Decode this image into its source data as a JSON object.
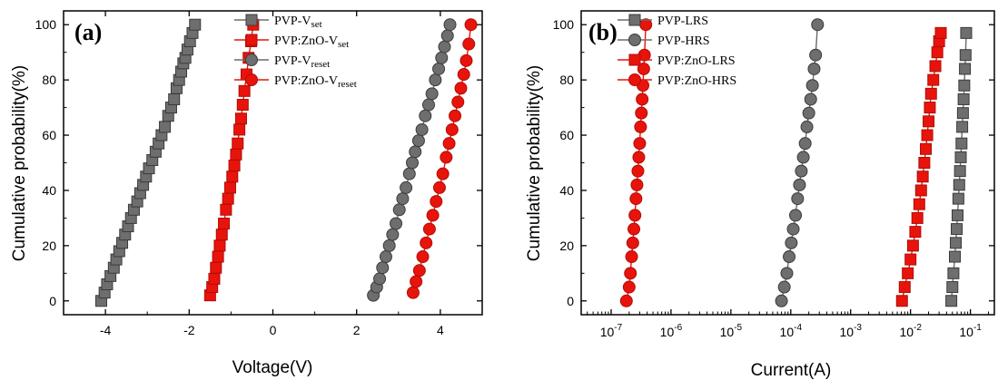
{
  "colors": {
    "gray": "#6b6b6b",
    "gray_fill": "#6e6e6e",
    "red": "#e8140c",
    "axis": "#000000"
  },
  "chart_data": [
    {
      "type": "line",
      "panel_label": "(a)",
      "xlabel": "Voltage(V)",
      "ylabel": "Cumulative probability(%)",
      "xlim": [
        -5,
        5
      ],
      "ylim": [
        -5,
        105
      ],
      "xscale": "linear",
      "x_ticks": [
        -4,
        -2,
        0,
        2,
        4
      ],
      "x_tick_labels": [
        "-4",
        "-2",
        "0",
        "2",
        "4"
      ],
      "y_ticks": [
        0,
        20,
        40,
        60,
        80,
        100
      ],
      "y_tick_labels": [
        "0",
        "20",
        "40",
        "60",
        "80",
        "100"
      ],
      "legend_position": "top-right",
      "series": [
        {
          "name": "PVP-Vset",
          "label_main": "PVP-V",
          "label_sub": "set",
          "marker": "square",
          "color": "gray",
          "x": [
            -4.1,
            -4.02,
            -3.96,
            -3.88,
            -3.8,
            -3.74,
            -3.67,
            -3.6,
            -3.53,
            -3.46,
            -3.39,
            -3.32,
            -3.24,
            -3.17,
            -3.1,
            -3.03,
            -2.96,
            -2.88,
            -2.8,
            -2.73,
            -2.66,
            -2.58,
            -2.5,
            -2.43,
            -2.36,
            -2.3,
            -2.24,
            -2.19,
            -2.14,
            -2.09,
            -2.04,
            -1.98,
            -1.92,
            -1.86
          ],
          "y": [
            0,
            3,
            6,
            9,
            12,
            15,
            18,
            21,
            24,
            27,
            30,
            33,
            36,
            39,
            42,
            45,
            48,
            51,
            54,
            57,
            60,
            63,
            67,
            70,
            73,
            77,
            80,
            83,
            86,
            88,
            91,
            94,
            97,
            100
          ]
        },
        {
          "name": "PVP:ZnO-Vset",
          "label_main": "PVP:ZnO-V",
          "label_sub": "set",
          "marker": "square",
          "color": "red",
          "x": [
            -1.5,
            -1.45,
            -1.4,
            -1.36,
            -1.31,
            -1.27,
            -1.22,
            -1.17,
            -1.12,
            -1.07,
            -1.02,
            -0.97,
            -0.92,
            -0.88,
            -0.84,
            -0.8,
            -0.76,
            -0.72,
            -0.68,
            -0.63,
            -0.58,
            -0.52,
            -0.47
          ],
          "y": [
            2,
            5,
            8,
            12,
            16,
            20,
            24,
            28,
            33,
            37,
            41,
            45,
            49,
            53,
            57,
            62,
            66,
            71,
            76,
            82,
            88,
            94,
            100
          ]
        },
        {
          "name": "PVP-Vreset",
          "label_main": "PVP-V",
          "label_sub": "reset",
          "marker": "circle",
          "color": "gray",
          "x": [
            2.4,
            2.48,
            2.55,
            2.62,
            2.7,
            2.78,
            2.86,
            2.94,
            3.02,
            3.1,
            3.18,
            3.26,
            3.33,
            3.4,
            3.48,
            3.56,
            3.64,
            3.72,
            3.8,
            3.88,
            3.96,
            4.03,
            4.1,
            4.17,
            4.23
          ],
          "y": [
            2,
            5,
            8,
            12,
            16,
            20,
            24,
            28,
            33,
            37,
            41,
            46,
            50,
            54,
            58,
            62,
            67,
            71,
            75,
            80,
            84,
            88,
            92,
            96,
            100
          ]
        },
        {
          "name": "PVP:ZnO-Vreset",
          "label_main": "PVP:ZnO-V",
          "label_sub": "reset",
          "marker": "circle",
          "color": "red",
          "x": [
            3.35,
            3.42,
            3.5,
            3.58,
            3.66,
            3.74,
            3.82,
            3.9,
            3.98,
            4.06,
            4.14,
            4.21,
            4.28,
            4.35,
            4.42,
            4.49,
            4.56,
            4.62,
            4.68,
            4.73
          ],
          "y": [
            3,
            7,
            11,
            16,
            21,
            26,
            31,
            36,
            41,
            46,
            52,
            57,
            62,
            67,
            72,
            77,
            82,
            87,
            93,
            100
          ]
        }
      ]
    },
    {
      "type": "line",
      "panel_label": "(b)",
      "xlabel": "Current(A)",
      "ylabel": "Cumulative probability(%)",
      "xlim_log10": [
        -7.5,
        -0.6
      ],
      "ylim": [
        -5,
        105
      ],
      "xscale": "log",
      "x_tick_exponents": [
        -7,
        -6,
        -5,
        -4,
        -3,
        -2,
        -1
      ],
      "x_tick_base": "10",
      "y_ticks": [
        0,
        20,
        40,
        60,
        80,
        100
      ],
      "y_tick_labels": [
        "0",
        "20",
        "40",
        "60",
        "80",
        "100"
      ],
      "legend_position": "top-left",
      "series": [
        {
          "name": "PVP-LRS",
          "marker": "square",
          "color": "gray",
          "x": [
            0.048,
            0.05,
            0.052,
            0.055,
            0.057,
            0.059,
            0.061,
            0.063,
            0.065,
            0.067,
            0.069,
            0.071,
            0.073,
            0.075,
            0.077,
            0.079,
            0.081,
            0.083,
            0.085
          ],
          "y": [
            0,
            5,
            10,
            16,
            21,
            26,
            31,
            37,
            42,
            47,
            52,
            57,
            63,
            68,
            73,
            78,
            84,
            89,
            97
          ]
        },
        {
          "name": "PVP-HRS",
          "marker": "circle",
          "color": "gray",
          "x": [
            7e-05,
            7.8e-05,
            8.6e-05,
            9.4e-05,
            0.000102,
            0.00011,
            0.00012,
            0.00013,
            0.00014,
            0.00015,
            0.000162,
            0.000174,
            0.000186,
            0.0002,
            0.000215,
            0.00023,
            0.000245,
            0.00026,
            0.00028
          ],
          "y": [
            0,
            5,
            10,
            16,
            21,
            26,
            31,
            37,
            42,
            47,
            52,
            57,
            63,
            68,
            73,
            78,
            84,
            89,
            100
          ]
        },
        {
          "name": "PVP:ZnO-LRS",
          "marker": "square",
          "color": "red",
          "x": [
            0.0072,
            0.008,
            0.009,
            0.01,
            0.011,
            0.012,
            0.013,
            0.014,
            0.015,
            0.016,
            0.017,
            0.018,
            0.019,
            0.02,
            0.021,
            0.022,
            0.024,
            0.026,
            0.028,
            0.03,
            0.032
          ],
          "y": [
            0,
            5,
            10,
            15,
            20,
            25,
            30,
            35,
            40,
            45,
            50,
            55,
            60,
            65,
            70,
            75,
            80,
            85,
            90,
            94,
            97
          ]
        },
        {
          "name": "PVP:ZnO-HRS",
          "marker": "circle",
          "color": "red",
          "x": [
            1.8e-07,
            2e-07,
            2.1e-07,
            2.2e-07,
            2.3e-07,
            2.4e-07,
            2.5e-07,
            2.6e-07,
            2.7e-07,
            2.8e-07,
            2.9e-07,
            3e-07,
            3.1e-07,
            3.2e-07,
            3.3e-07,
            3.4e-07,
            3.5e-07,
            3.6e-07,
            3.8e-07
          ],
          "y": [
            0,
            5,
            10,
            16,
            21,
            26,
            31,
            37,
            42,
            47,
            52,
            57,
            63,
            68,
            73,
            78,
            84,
            89,
            100
          ]
        }
      ]
    }
  ]
}
